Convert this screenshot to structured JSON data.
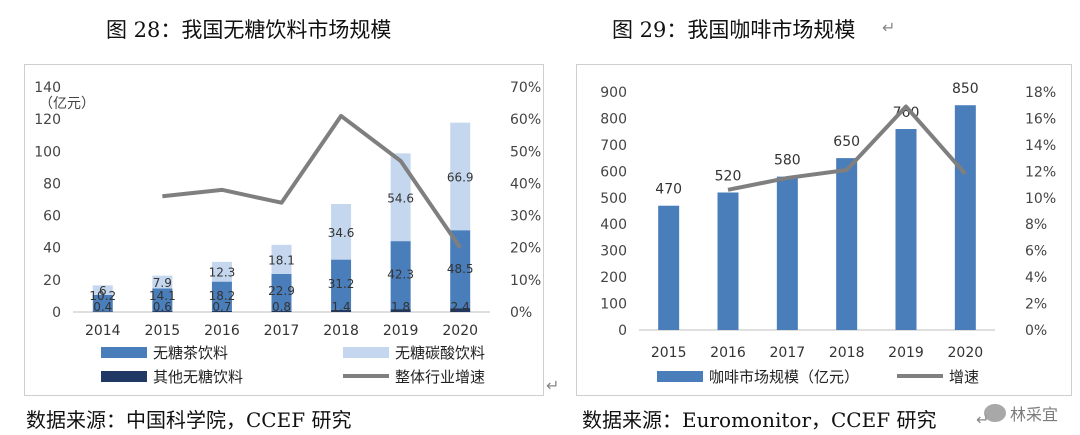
{
  "left": {
    "title": "图 28：我国无糖饮料市场规模",
    "source": "数据来源：中国科学院，CCEF 研究"
  },
  "right": {
    "title": "图 29：我国咖啡市场规模",
    "source": "数据来源：Euromonitor，CCEF 研究"
  },
  "return_mark": "↵",
  "watermark": "林采宜",
  "chart_data": [
    {
      "type": "bar",
      "stacked": true,
      "categories": [
        "2014",
        "2015",
        "2016",
        "2017",
        "2018",
        "2019",
        "2020"
      ],
      "y_unit_label": "（亿元）",
      "ylim": [
        0,
        140
      ],
      "yticks": [
        0,
        20,
        40,
        60,
        80,
        100,
        120,
        140
      ],
      "y2lim": [
        0,
        70
      ],
      "y2ticks": [
        "0%",
        "10%",
        "20%",
        "30%",
        "40%",
        "50%",
        "60%",
        "70%"
      ],
      "series": [
        {
          "name": "其他无糖饮料",
          "values": [
            0.4,
            0.6,
            0.7,
            0.8,
            1.4,
            1.8,
            2.4
          ],
          "color": "#1f3864"
        },
        {
          "name": "无糖茶饮料",
          "values": [
            10.2,
            14.1,
            18.2,
            22.9,
            31.2,
            42.3,
            48.5
          ],
          "color": "#4a7ebb"
        },
        {
          "name": "无糖碳酸饮料",
          "values": [
            6,
            7.9,
            12.3,
            18.1,
            34.6,
            54.6,
            66.9
          ],
          "color": "#c5d7ef"
        }
      ],
      "line": {
        "name": "整体行业增速",
        "values": [
          null,
          36,
          38,
          34,
          61,
          47,
          20
        ],
        "color": "#7f7f7f"
      },
      "legend_order": [
        "无糖茶饮料",
        "无糖碳酸饮料",
        "其他无糖饮料",
        "整体行业增速"
      ],
      "grid": false,
      "legend": "bottom"
    },
    {
      "type": "bar",
      "categories": [
        "2015",
        "2016",
        "2017",
        "2018",
        "2019",
        "2020"
      ],
      "ylim": [
        0,
        900
      ],
      "yticks": [
        0,
        100,
        200,
        300,
        400,
        500,
        600,
        700,
        800,
        900
      ],
      "y2lim": [
        0,
        18
      ],
      "y2ticks": [
        "0%",
        "2%",
        "4%",
        "6%",
        "8%",
        "10%",
        "12%",
        "14%",
        "16%",
        "18%"
      ],
      "series": [
        {
          "name": "咖啡市场规模（亿元）",
          "values": [
            470,
            520,
            580,
            650,
            760,
            850
          ],
          "color": "#4a7ebb"
        }
      ],
      "line": {
        "name": "增速",
        "values": [
          null,
          10.6,
          11.5,
          12.1,
          16.9,
          11.8
        ],
        "color": "#7f7f7f"
      },
      "grid": false,
      "legend": "bottom"
    }
  ]
}
